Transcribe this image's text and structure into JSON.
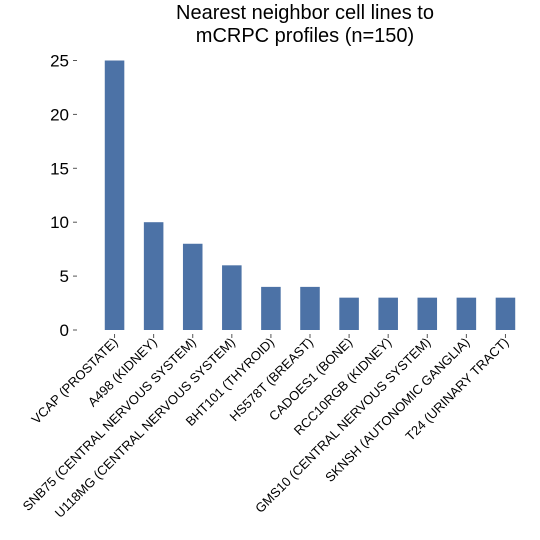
{
  "chart_data": {
    "type": "bar",
    "title_lines": [
      "Nearest neighbor cell lines to",
      "mCRPC profiles (n=150)"
    ],
    "xlabel": "",
    "ylabel": "",
    "categories": [
      "VCAP (PROSTATE)",
      "A498 (KIDNEY)",
      "SNB75 (CENTRAL NERVOUS SYSTEM)",
      "U118MG (CENTRAL NERVOUS SYSTEM)",
      "BHT101 (THYROID)",
      "HS578T (BREAST)",
      "CADOES1 (BONE)",
      "RCC10RGB (KIDNEY)",
      "GMS10 (CENTRAL NERVOUS SYSTEM)",
      "SKNSH (AUTONOMIC GANGLIA)",
      "T24 (URINARY TRACT)"
    ],
    "values": [
      25,
      10,
      8,
      6,
      4,
      4,
      3,
      3,
      3,
      3,
      3
    ],
    "ylim": [
      0,
      26.5
    ],
    "yticks": [
      0,
      5,
      10,
      15,
      20,
      25
    ],
    "grid": false,
    "bar_color": "#4c72a6"
  }
}
